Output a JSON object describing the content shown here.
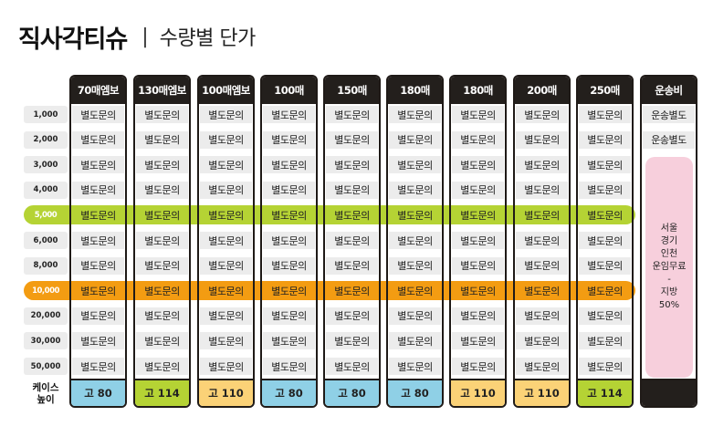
{
  "title": {
    "main": "직사각티슈",
    "separator": "|",
    "sub": "수량별 단가"
  },
  "columns": [
    {
      "header": "70매엠보",
      "footer": "고 80",
      "footer_color": "#8fd0e6"
    },
    {
      "header": "130매엠보",
      "footer": "고 114",
      "footer_color": "#b5d334"
    },
    {
      "header": "100매엠보",
      "footer": "고 110",
      "footer_color": "#fbd277"
    },
    {
      "header": "100매",
      "footer": "고 80",
      "footer_color": "#8fd0e6"
    },
    {
      "header": "150매",
      "footer": "고 80",
      "footer_color": "#8fd0e6"
    },
    {
      "header": "180매",
      "footer": "고 80",
      "footer_color": "#8fd0e6"
    },
    {
      "header": "180매",
      "footer": "고 110",
      "footer_color": "#fbd277"
    },
    {
      "header": "200매",
      "footer": "고 110",
      "footer_color": "#fbd277"
    },
    {
      "header": "250매",
      "footer": "고 114",
      "footer_color": "#b5d334"
    },
    {
      "header": "운송비",
      "footer": "",
      "footer_color": "#231f1c"
    }
  ],
  "quantities": [
    "1,000",
    "2,000",
    "3,000",
    "4,000",
    "5,000",
    "6,000",
    "8,000",
    "10,000",
    "20,000",
    "30,000",
    "50,000"
  ],
  "highlight_rows": {
    "5,000": "green",
    "10,000": "orange"
  },
  "cell_text": "별도문의",
  "shipping": {
    "rows": [
      "운송별도",
      "운송별도"
    ],
    "note_lines": [
      "서울",
      "경기",
      "인천",
      "운임무료",
      "-",
      "지방",
      "50%"
    ]
  },
  "case_height_label": [
    "케이스",
    "높이"
  ],
  "colors": {
    "header_bg": "#231f1c",
    "cell_bg": "#ececec",
    "green": "#b5d334",
    "orange": "#f39c12",
    "blue": "#8fd0e6",
    "yellow": "#fbd277",
    "pink": "#f7cfdc"
  }
}
